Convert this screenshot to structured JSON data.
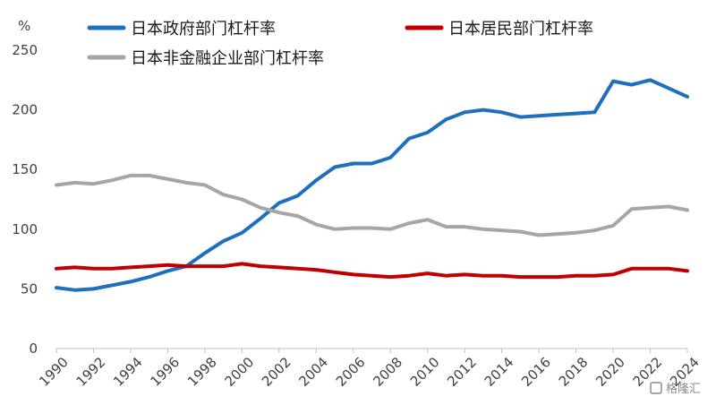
{
  "chart_data": {
    "type": "line",
    "title": "",
    "xlabel": "",
    "ylabel": "%",
    "ylim": [
      0,
      250
    ],
    "yticks": [
      0,
      50,
      100,
      150,
      200,
      250
    ],
    "xlim": [
      1990,
      2024
    ],
    "xticks": [
      1990,
      1992,
      1994,
      1996,
      1998,
      2000,
      2002,
      2004,
      2006,
      2008,
      2010,
      2012,
      2014,
      2016,
      2018,
      2020,
      2022,
      2024
    ],
    "grid": false,
    "legend": "top",
    "x": [
      1990,
      1991,
      1992,
      1993,
      1994,
      1995,
      1996,
      1997,
      1998,
      1999,
      2000,
      2001,
      2002,
      2003,
      2004,
      2005,
      2006,
      2007,
      2008,
      2009,
      2010,
      2011,
      2012,
      2013,
      2014,
      2015,
      2016,
      2017,
      2018,
      2019,
      2020,
      2021,
      2022,
      2023,
      2024
    ],
    "series": [
      {
        "name": "日本政府部门杠杆率",
        "color": "#1f6fbf",
        "values": [
          51,
          49,
          50,
          53,
          56,
          60,
          65,
          69,
          80,
          90,
          97,
          109,
          122,
          128,
          141,
          152,
          155,
          155,
          160,
          176,
          181,
          192,
          198,
          200,
          198,
          194,
          195,
          196,
          197,
          198,
          224,
          221,
          225,
          218,
          211
        ]
      },
      {
        "name": "日本居民部门杠杆率",
        "color": "#c00000",
        "values": [
          67,
          68,
          67,
          67,
          68,
          69,
          70,
          69,
          69,
          69,
          71,
          69,
          68,
          67,
          66,
          64,
          62,
          61,
          60,
          61,
          63,
          61,
          62,
          61,
          61,
          60,
          60,
          60,
          61,
          61,
          62,
          67,
          67,
          67,
          65
        ]
      },
      {
        "name": "日本非金融企业部门杠杆率",
        "color": "#a6a6a6",
        "values": [
          137,
          139,
          138,
          141,
          145,
          145,
          142,
          139,
          137,
          129,
          125,
          118,
          114,
          111,
          104,
          100,
          101,
          101,
          100,
          105,
          108,
          102,
          102,
          100,
          99,
          98,
          95,
          96,
          97,
          99,
          103,
          117,
          118,
          119,
          116
        ]
      }
    ]
  },
  "watermark": "格隆汇"
}
